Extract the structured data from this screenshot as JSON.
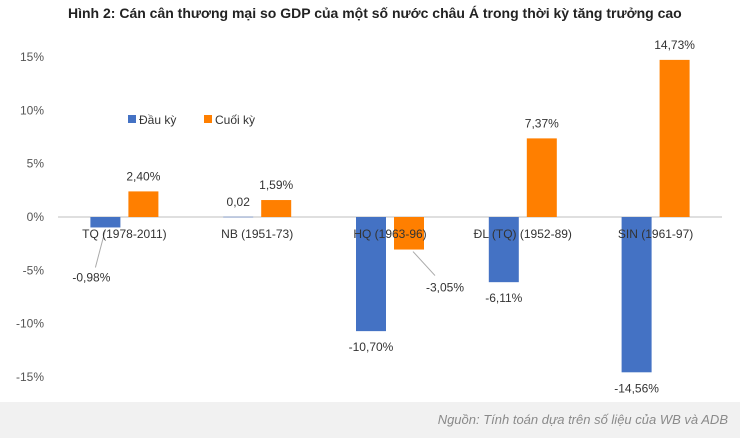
{
  "title": "Hình 2: Cán cân thương mại so GDP của một số nước châu Á trong thời kỳ tăng trưởng cao",
  "source": "Nguồn: Tính toán dựa trên số liệu của WB và ADB",
  "colors": {
    "series1": "#4472C4",
    "series2": "#FF7F00",
    "axis": "#bfbfbf",
    "text": "#333333"
  },
  "chart_data": {
    "type": "bar",
    "categories": [
      "TQ (1978-2011)",
      "NB (1951-73)",
      "HQ (1963-96)",
      "ĐL (TQ) (1952-89)",
      "SIN (1961-97)"
    ],
    "series": [
      {
        "name": "Đầu kỳ",
        "values": [
          -0.98,
          0.02,
          -10.7,
          -6.11,
          -14.56
        ],
        "labels": [
          "-0,98%",
          "0,02",
          "-10,70%",
          "-6,11%",
          "-14,56%"
        ]
      },
      {
        "name": "Cuối kỳ",
        "values": [
          2.4,
          1.59,
          -3.05,
          7.37,
          14.73
        ],
        "labels": [
          "2,40%",
          "1,59%",
          "-3,05%",
          "7,37%",
          "14,73%"
        ]
      }
    ],
    "yticks": [
      15,
      10,
      5,
      0,
      -5,
      -10,
      -15
    ],
    "ytick_labels": [
      "15%",
      "10%",
      "5%",
      "0%",
      "-5%",
      "-10%",
      "-15%"
    ],
    "ylim": [
      -15,
      15
    ],
    "legend_position": "top-left",
    "grid": false
  }
}
